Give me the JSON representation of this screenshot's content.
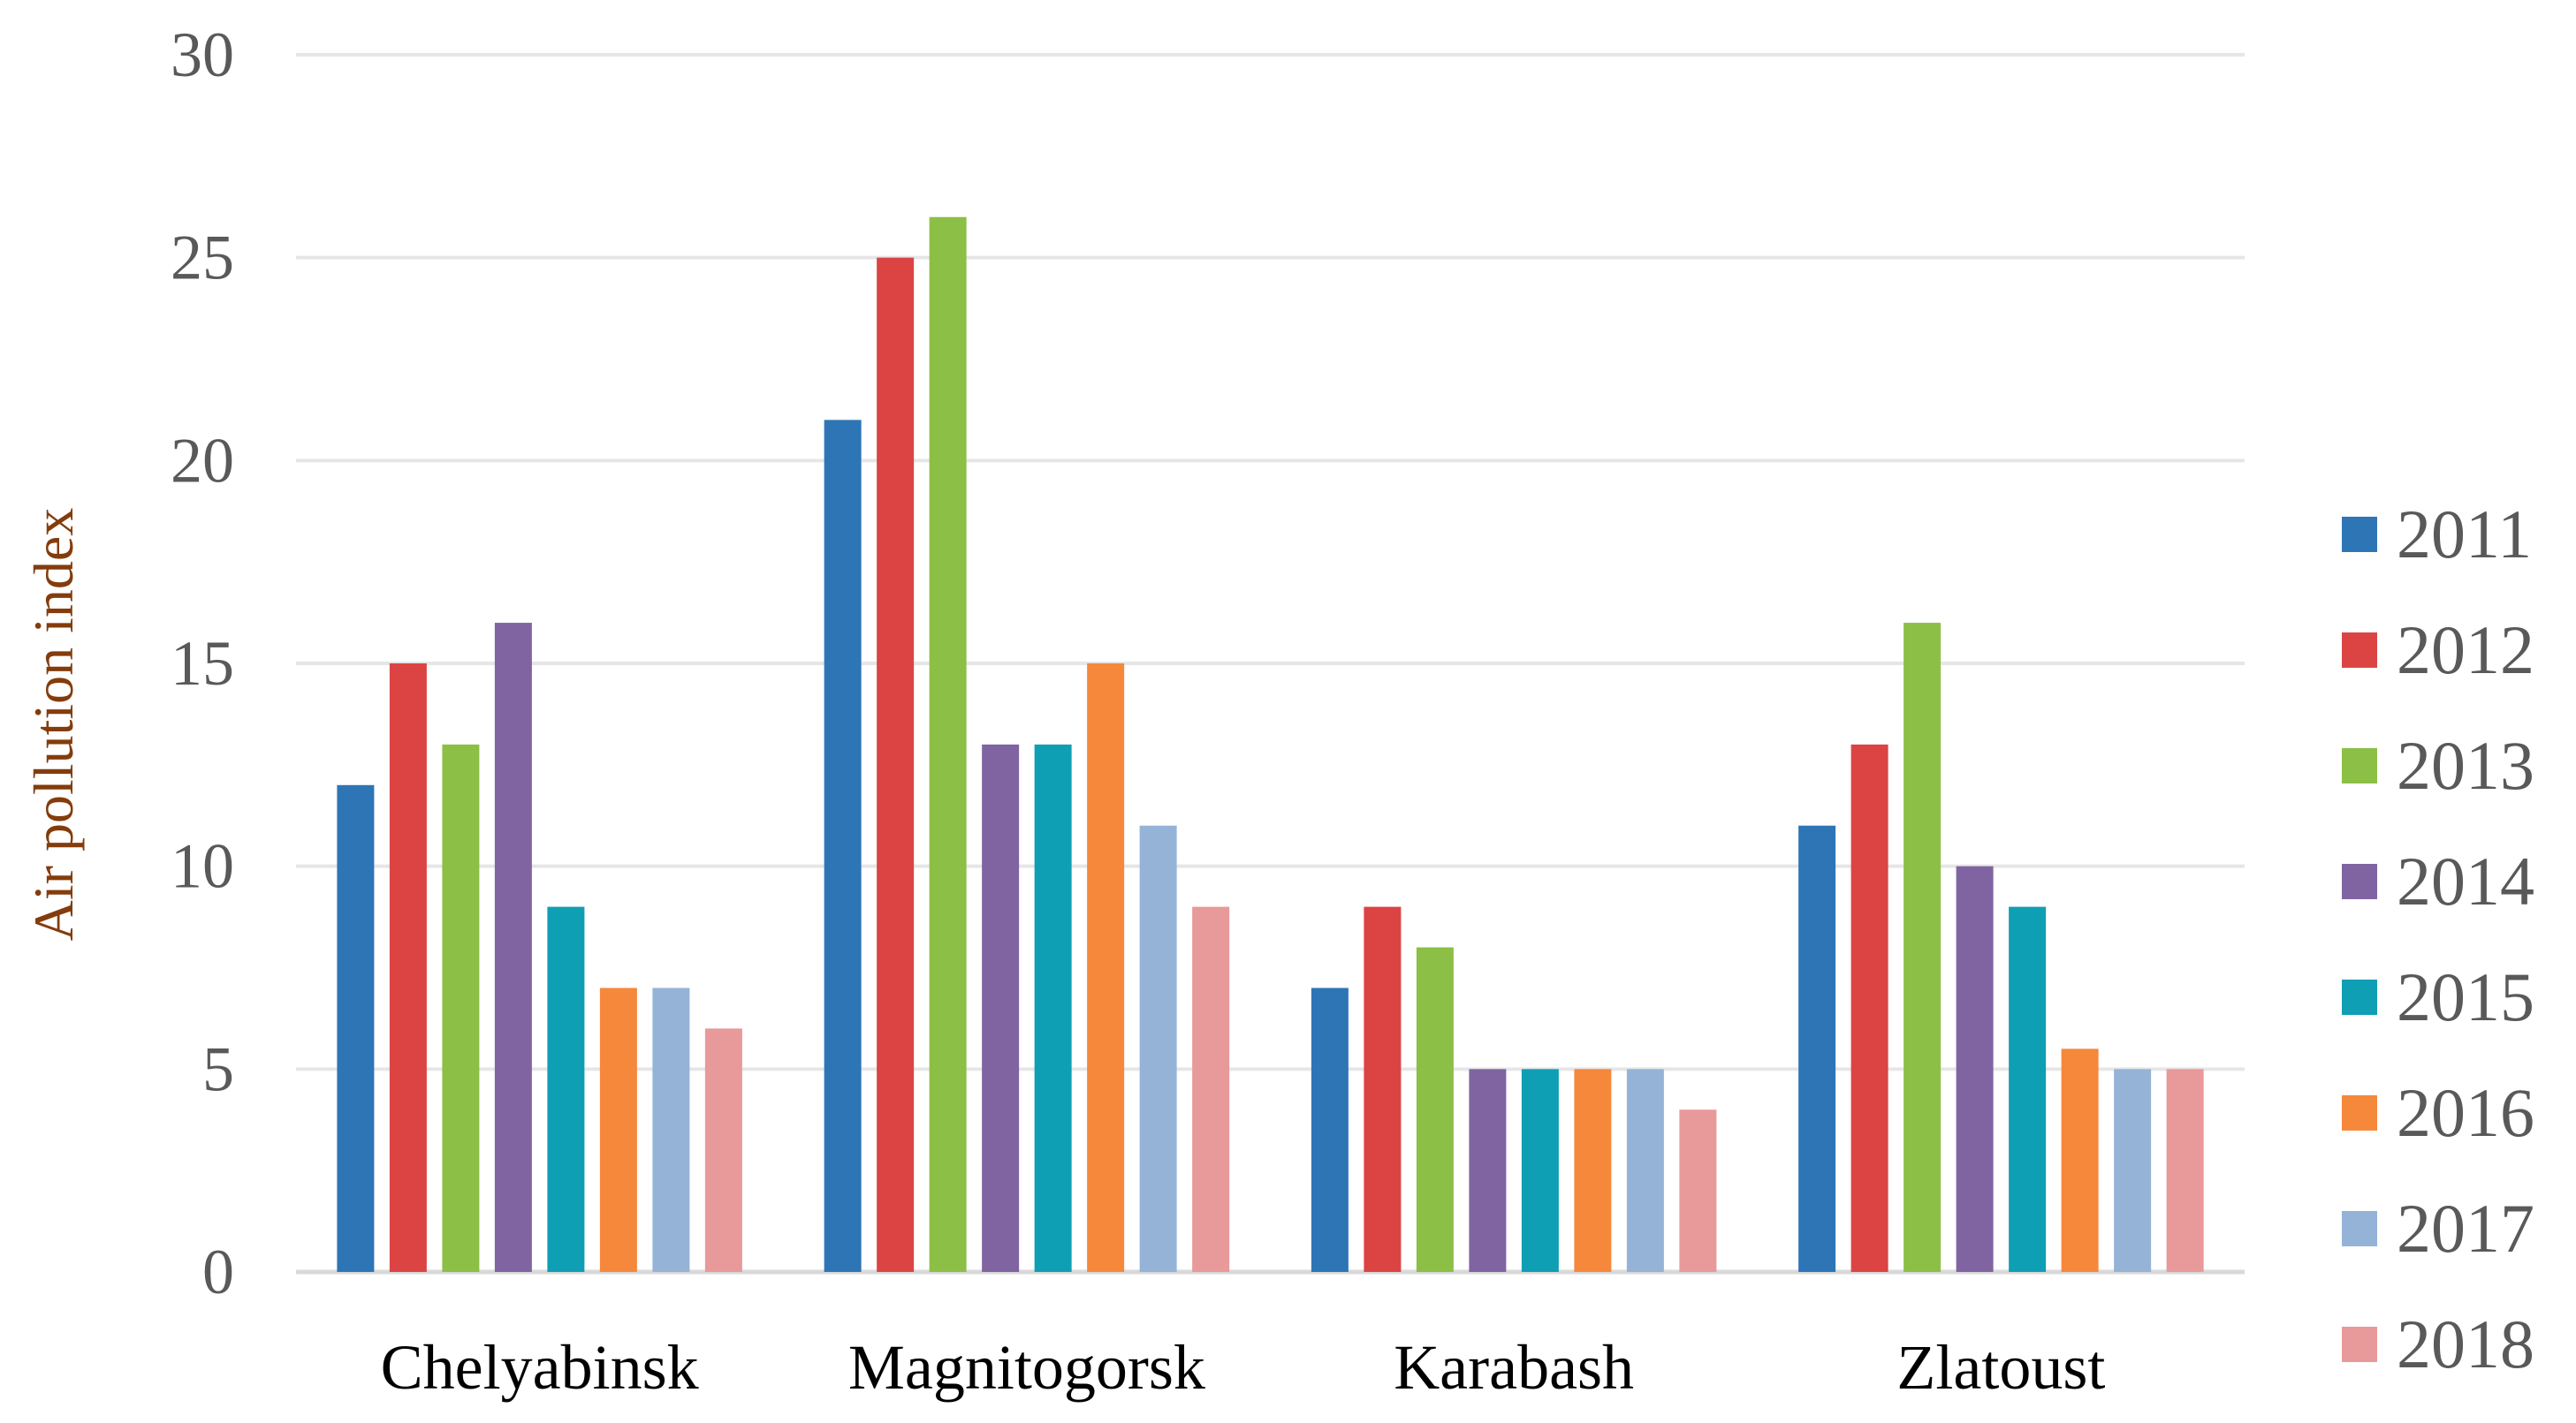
{
  "chart_data": {
    "type": "bar",
    "title": "",
    "xlabel": "",
    "ylabel": "Air pollution index",
    "ylim": [
      0,
      30
    ],
    "yticks": [
      0,
      5,
      10,
      15,
      20,
      25,
      30
    ],
    "grid": true,
    "legend_position": "right",
    "categories": [
      "Chelyabinsk",
      "Magnitogorsk",
      "Karabash",
      "Zlatoust"
    ],
    "series": [
      {
        "name": "2011",
        "color": "#2e75b6",
        "values": [
          12,
          21,
          7,
          11
        ]
      },
      {
        "name": "2012",
        "color": "#dc4444",
        "values": [
          15,
          25,
          9,
          13
        ]
      },
      {
        "name": "2013",
        "color": "#8cbf45",
        "values": [
          13,
          26,
          8,
          16
        ]
      },
      {
        "name": "2014",
        "color": "#8064a2",
        "values": [
          16,
          13,
          5,
          10
        ]
      },
      {
        "name": "2015",
        "color": "#0f9fb4",
        "values": [
          9,
          13,
          5,
          9
        ]
      },
      {
        "name": "2016",
        "color": "#f5883b",
        "values": [
          7,
          15,
          5,
          5.5
        ]
      },
      {
        "name": "2017",
        "color": "#95b3d7",
        "values": [
          7,
          11,
          5,
          5
        ]
      },
      {
        "name": "2018",
        "color": "#e8999a",
        "values": [
          6,
          9,
          4,
          5
        ]
      }
    ]
  }
}
